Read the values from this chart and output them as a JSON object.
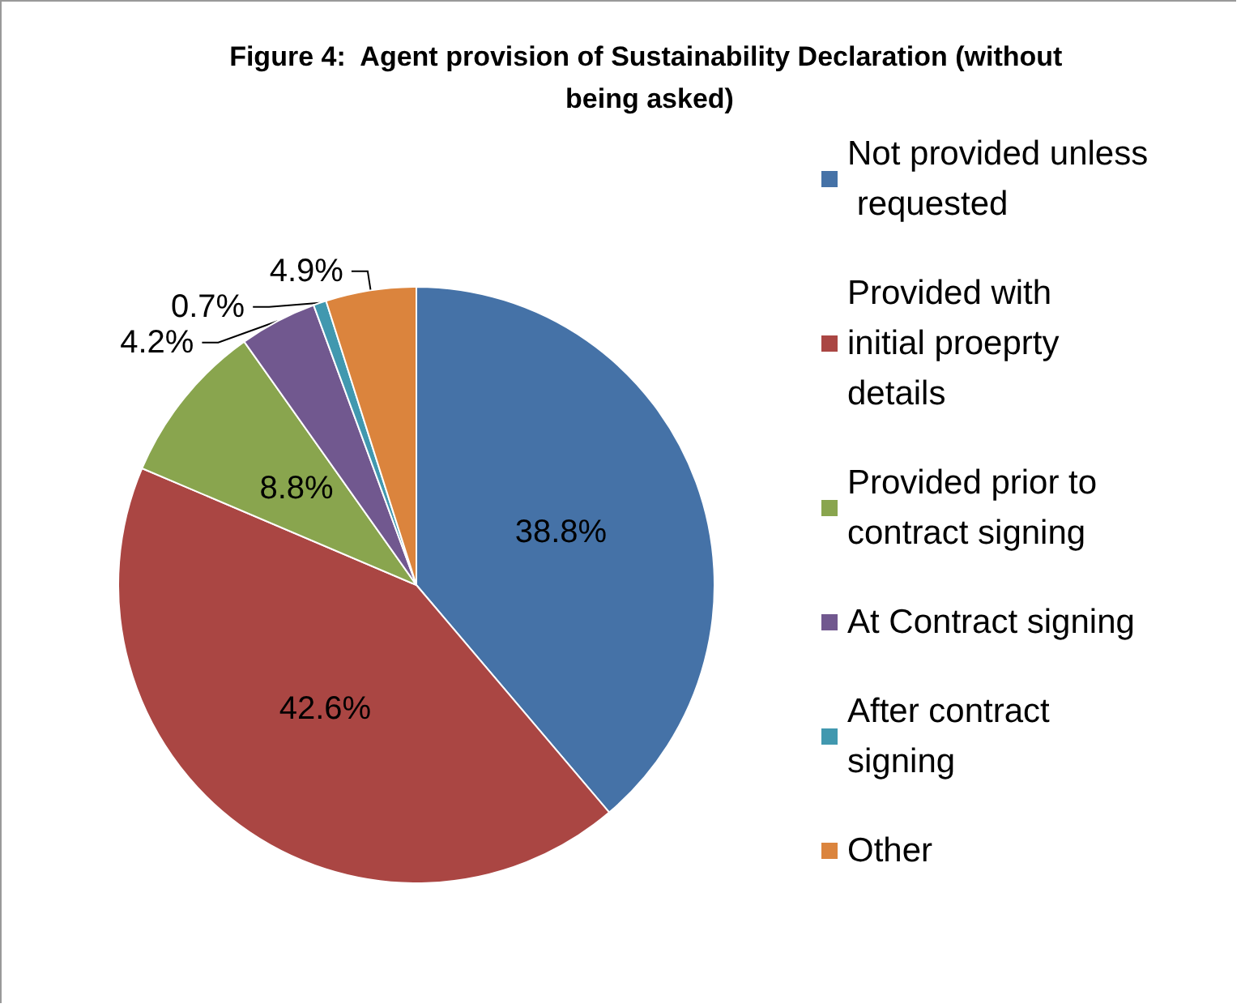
{
  "chart_data": {
    "type": "pie",
    "title": "Figure 4:  Agent provision of Sustainability Declaration (without being asked)",
    "categories": [
      "Not provided unless requested",
      "Provided with initial proeprty details",
      "Provided prior to contract signing",
      "At Contract signing",
      "After contract signing",
      "Other"
    ],
    "values": [
      38.8,
      42.6,
      8.8,
      4.2,
      0.7,
      4.9
    ],
    "colors": [
      "#4572a7",
      "#aa4643",
      "#89a54e",
      "#71588f",
      "#4198af",
      "#db843d"
    ],
    "value_labels": [
      "38.8%",
      "42.6%",
      "8.8%",
      "4.2%",
      "0.7%",
      "4.9%"
    ],
    "legend": "right"
  }
}
